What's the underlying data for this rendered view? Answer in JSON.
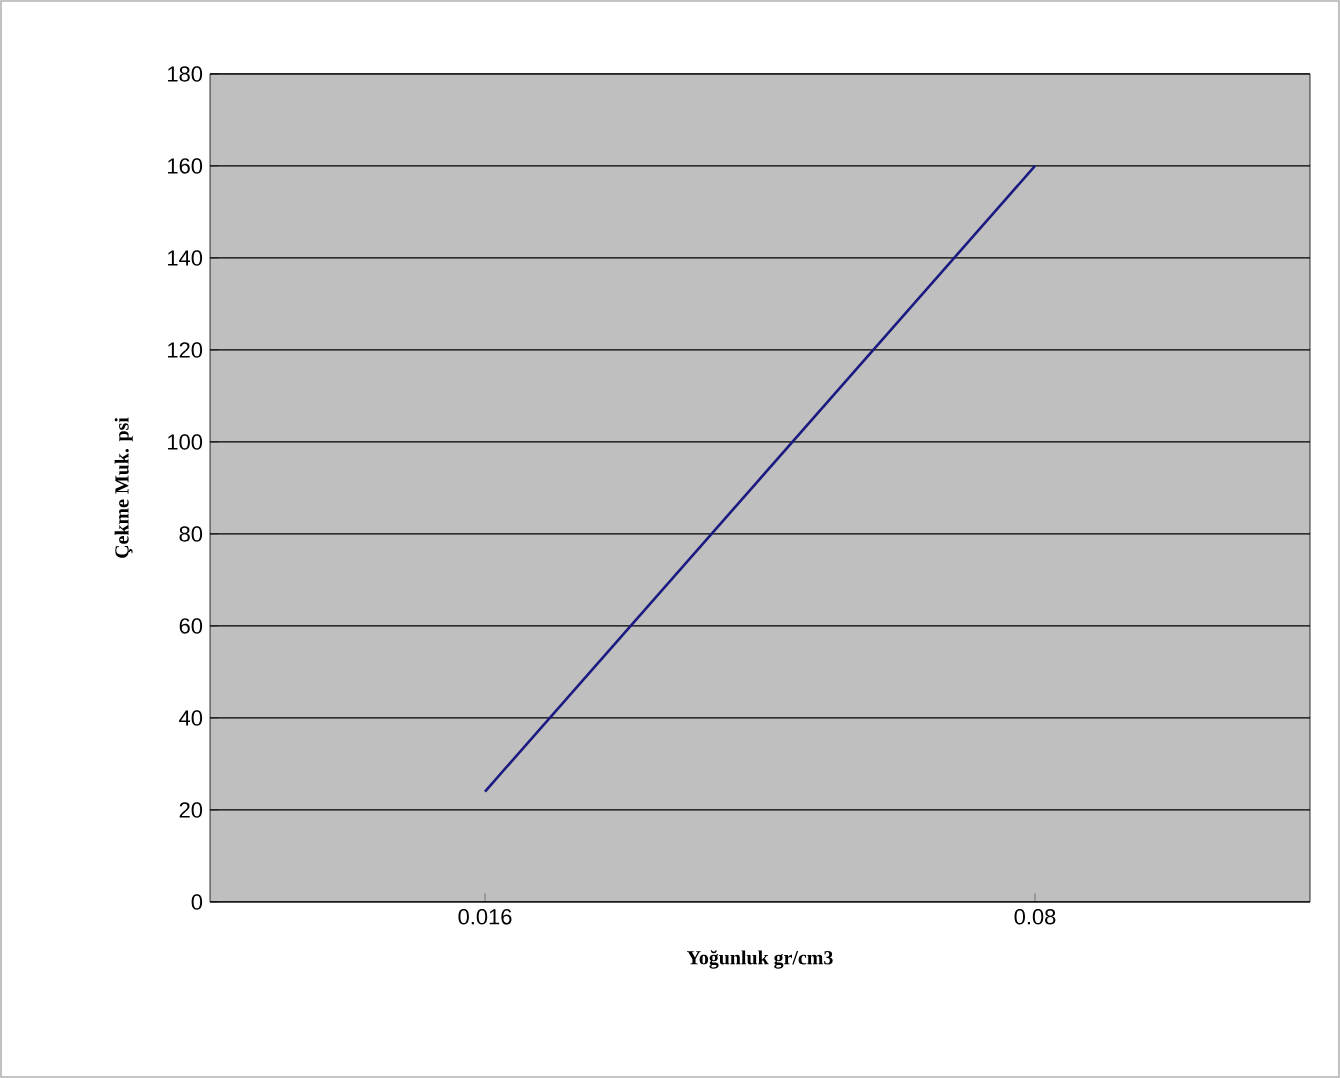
{
  "chart_data": {
    "type": "line",
    "xlabel": "Yoğunluk gr/cm3",
    "ylabel": "Çekme Muk. psi",
    "categories": [
      "0.016",
      "0.08"
    ],
    "series": [
      {
        "color": "#1a1a80",
        "values": [
          24,
          160
        ]
      }
    ],
    "ylim": [
      0,
      180
    ],
    "yticks": [
      0,
      20,
      40,
      60,
      80,
      100,
      120,
      140,
      160,
      180
    ],
    "grid": "y",
    "marker": "none",
    "line_style": "solid"
  }
}
